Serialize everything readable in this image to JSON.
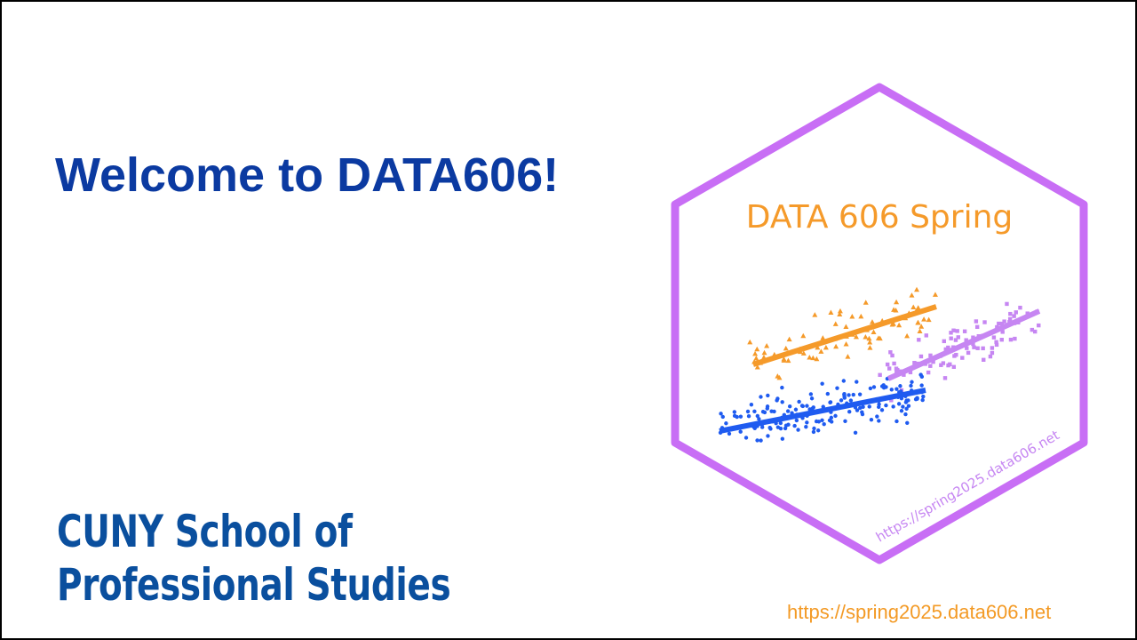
{
  "slide": {
    "title": "Welcome to DATA606!",
    "footer_url": "https://spring2025.data606.net"
  },
  "logo": {
    "org_line1": "CUNY School of",
    "org_line2": "Professional Studies"
  },
  "hex_sticker": {
    "title": "DATA 606 Spring",
    "url": "https://spring2025.data606.net",
    "colors": {
      "border": "#c86ef5",
      "orange": "#f59a2a",
      "blue": "#1f5bf0",
      "purple": "#c686f2"
    }
  }
}
